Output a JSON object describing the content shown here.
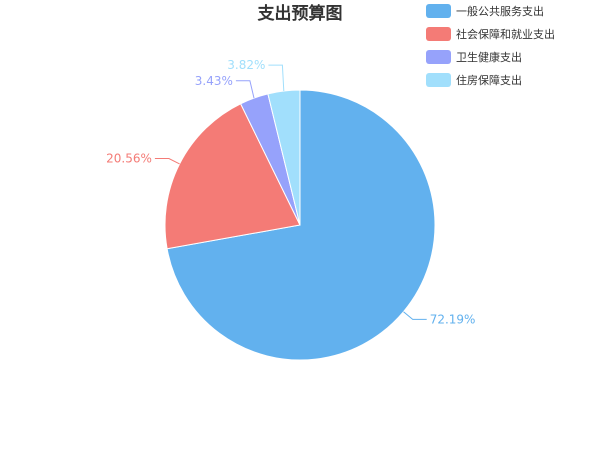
{
  "chart_data": {
    "type": "pie",
    "title": "支出预算图",
    "legend_position": "top-right",
    "slices": [
      {
        "name": "一般公共服务支出",
        "value": 72.19,
        "label": "72.19%",
        "color": "#62b1ee"
      },
      {
        "name": "社会保障和就业支出",
        "value": 20.56,
        "label": "20.56%",
        "color": "#f47b76"
      },
      {
        "name": "卫生健康支出",
        "value": 3.43,
        "label": "3.43%",
        "color": "#96a2fb"
      },
      {
        "name": "住房保障支出",
        "value": 3.82,
        "label": "3.82%",
        "color": "#a1dffc"
      }
    ]
  }
}
